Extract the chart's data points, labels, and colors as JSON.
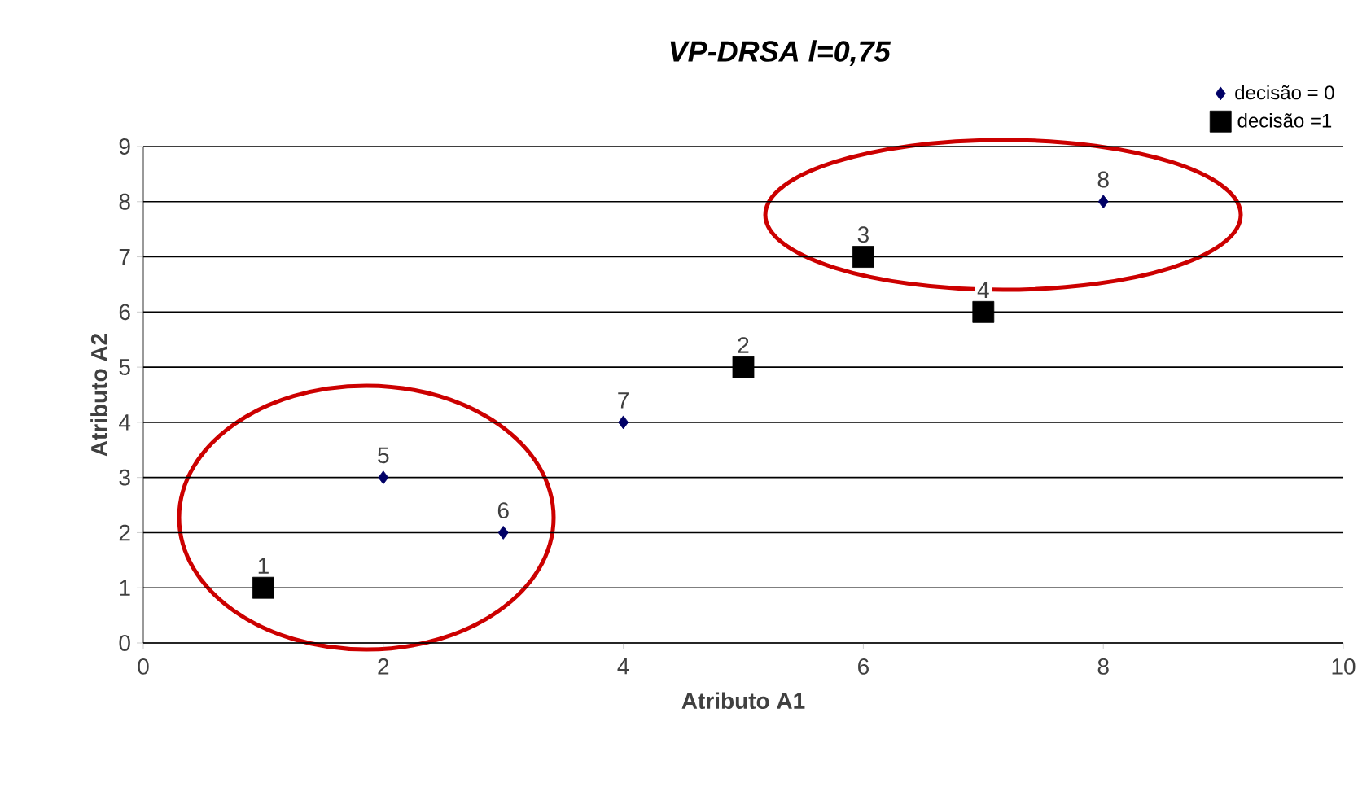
{
  "chart_data": {
    "type": "scatter",
    "title": "VP-DRSA   l=0,75",
    "xlabel": "Atributo A1",
    "ylabel": "Atributo A2",
    "series": [
      {
        "name": "decisão = 0",
        "color": "#000066",
        "marker": "diamond",
        "x": [
          2,
          3,
          4,
          8
        ],
        "values": [
          3,
          2,
          4,
          8
        ]
      },
      {
        "name": "decisão =1",
        "color": "#000000",
        "marker": "square",
        "x": [
          1,
          5,
          6,
          7
        ],
        "values": [
          1,
          5,
          7,
          6
        ]
      }
    ],
    "annotations": [
      {
        "text": "1",
        "x": 1,
        "y": 1
      },
      {
        "text": "2",
        "x": 5,
        "y": 5
      },
      {
        "text": "3",
        "x": 6,
        "y": 7
      },
      {
        "text": "4",
        "x": 7,
        "y": 6
      },
      {
        "text": "5",
        "x": 2,
        "y": 3
      },
      {
        "text": "6",
        "x": 3,
        "y": 2
      },
      {
        "text": "7",
        "x": 4,
        "y": 4
      },
      {
        "text": "8",
        "x": 8,
        "y": 8
      }
    ],
    "xlim": [
      0,
      10
    ],
    "xticks": [
      0,
      2,
      4,
      6,
      8,
      10
    ],
    "ylim": [
      0,
      9
    ],
    "yticks": [
      0,
      1,
      2,
      3,
      4,
      5,
      6,
      7,
      8,
      9
    ],
    "grid": "y",
    "legend": "top right"
  }
}
